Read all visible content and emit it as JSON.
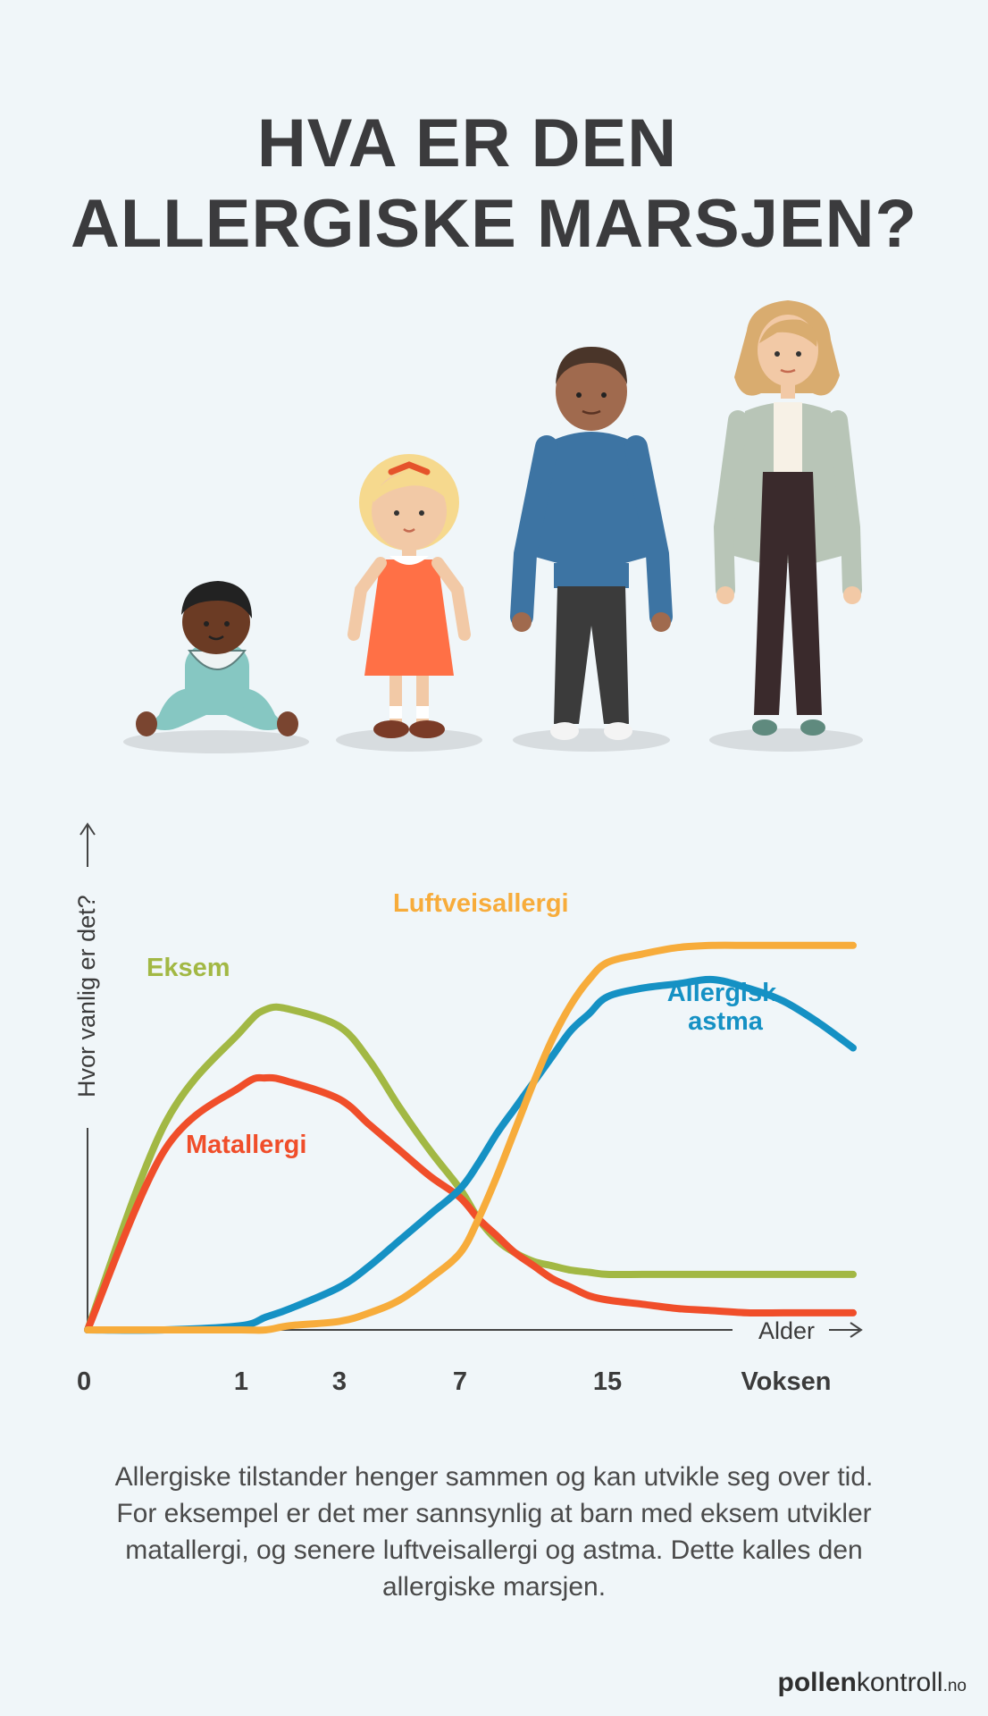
{
  "title": {
    "line1": "HVA ER DEN",
    "line2": "ALLERGISKE MARSJEN?"
  },
  "caption": "Allergiske tilstander henger sammen og kan utvikle seg over tid. For eksempel er det mer sannsynlig at barn med eksem utvikler matallergi, og senere luftveisallergi og astma. Dette kalles den allergiske marsjen.",
  "logo": {
    "bold": "pollen",
    "regular": "kontroll",
    "tld": ".no"
  },
  "colors": {
    "background": "#f0f6f9",
    "title": "#3b3b3d",
    "eksem": "#a2b844",
    "matallergi": "#f04e2a",
    "astma": "#1591c4",
    "luftveis": "#f7ac3b",
    "axis": "#444444"
  },
  "chart_data": {
    "type": "line",
    "xlabel": "Alder",
    "ylabel": "Hvor vanlig er det?",
    "x_ticks": [
      "0",
      "1",
      "3",
      "7",
      "15",
      "Voksen"
    ],
    "y_values_shown": false,
    "series": [
      {
        "name": "Eksem",
        "color": "#a2b844",
        "x": [
          0,
          0.5,
          1,
          1.5,
          2,
          3,
          4,
          5,
          6,
          7,
          8,
          9,
          10,
          11,
          12,
          13,
          14,
          15,
          16,
          17,
          18,
          19,
          20,
          21,
          22
        ],
        "y": [
          0,
          0.48,
          0.7,
          0.75,
          0.75,
          0.71,
          0.63,
          0.52,
          0.42,
          0.33,
          0.26,
          0.21,
          0.18,
          0.16,
          0.15,
          0.14,
          0.135,
          0.13,
          0.13,
          0.13,
          0.13,
          0.13,
          0.13,
          0.13,
          0.13
        ]
      },
      {
        "name": "Matallergi",
        "color": "#f04e2a",
        "x": [
          0,
          0.5,
          1,
          1.5,
          2,
          3,
          4,
          5,
          6,
          7,
          8,
          9,
          10,
          11,
          12,
          13,
          14,
          15,
          16,
          17,
          18,
          19,
          20,
          21,
          22
        ],
        "y": [
          0,
          0.42,
          0.57,
          0.59,
          0.58,
          0.54,
          0.48,
          0.42,
          0.36,
          0.31,
          0.26,
          0.22,
          0.18,
          0.15,
          0.12,
          0.1,
          0.08,
          0.07,
          0.06,
          0.05,
          0.045,
          0.04,
          0.04,
          0.04,
          0.04
        ]
      },
      {
        "name": "Allergisk astma",
        "color": "#1591c4",
        "x": [
          0,
          0.5,
          1,
          1.5,
          2,
          3,
          4,
          5,
          6,
          7,
          8,
          9,
          10,
          11,
          12,
          13,
          14,
          15,
          16,
          17,
          18,
          19,
          20,
          21,
          22
        ],
        "y": [
          0,
          0,
          0.01,
          0.03,
          0.05,
          0.1,
          0.15,
          0.21,
          0.27,
          0.33,
          0.39,
          0.46,
          0.52,
          0.58,
          0.64,
          0.7,
          0.74,
          0.78,
          0.8,
          0.81,
          0.82,
          0.8,
          0.77,
          0.72,
          0.66
        ]
      },
      {
        "name": "Luftveisallergi",
        "color": "#f7ac3b",
        "x": [
          0,
          0.5,
          1,
          1.5,
          2,
          3,
          4,
          5,
          6,
          7,
          8,
          9,
          10,
          11,
          12,
          13,
          14,
          15,
          16,
          17,
          18,
          19,
          20,
          21,
          22
        ],
        "y": [
          0,
          0,
          0,
          0,
          0.01,
          0.02,
          0.04,
          0.07,
          0.12,
          0.18,
          0.26,
          0.36,
          0.47,
          0.58,
          0.68,
          0.76,
          0.82,
          0.86,
          0.88,
          0.895,
          0.9,
          0.9,
          0.9,
          0.9,
          0.9
        ]
      }
    ]
  }
}
